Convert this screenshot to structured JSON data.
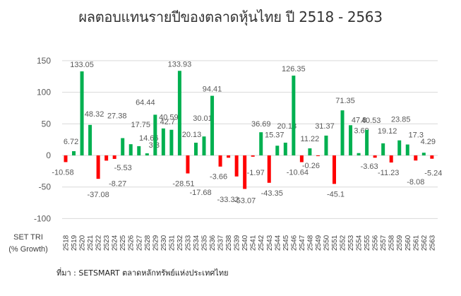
{
  "title": "ผลตอบแทนรายปีของตลาดหุ้นไทย ปี 2518 - 2563",
  "row_label_line1": "SET TRI",
  "row_label_line2": "(% Growth)",
  "source": "ที่มา : SETSMART ตลาดหลักทรัพย์แห่งประเทศไทย",
  "colors": {
    "positive": "#00b050",
    "negative": "#ff0000",
    "grid": "#d9d9d9",
    "text": "#595959"
  },
  "chart_data": {
    "type": "bar",
    "title": "ผลตอบแทนรายปีของตลาดหุ้นไทย ปี 2518 - 2563",
    "xlabel": "SET TRI (% Growth)",
    "ylabel": "",
    "ylim": [
      -100,
      150
    ],
    "yticks": [
      150,
      100,
      50,
      0,
      -50,
      -100
    ],
    "grid": true,
    "legend": "none",
    "categories": [
      "2518",
      "2519",
      "2520",
      "2521",
      "2522",
      "2523",
      "2524",
      "2525",
      "2526",
      "2527",
      "2528",
      "2529",
      "2530",
      "2531",
      "2532",
      "2533",
      "2534",
      "2535",
      "2536",
      "2537",
      "2538",
      "2539",
      "2540",
      "2541",
      "2542",
      "2543",
      "2544",
      "2545",
      "2546",
      "2547",
      "2548",
      "2549",
      "2550",
      "2551",
      "2552",
      "2553",
      "2554",
      "2555",
      "2556",
      "2557",
      "2558",
      "2559",
      "2560",
      "2561",
      "2562",
      "2563"
    ],
    "values": [
      -10.58,
      6.72,
      133.05,
      48.32,
      -37.08,
      -8.27,
      -5.53,
      27.38,
      17.75,
      14.66,
      3.3,
      64.44,
      42.7,
      40.59,
      133.93,
      -28.51,
      20.13,
      30.01,
      94.41,
      -17.68,
      -3.66,
      -33.32,
      -53.07,
      -1.97,
      36.69,
      -43.35,
      15.37,
      20.18,
      126.35,
      -10.64,
      11.22,
      -0.26,
      31.37,
      -45.1,
      71.35,
      47.8,
      3.69,
      40.53,
      -3.63,
      19.12,
      -11.23,
      23.85,
      17.3,
      -8.08,
      4.29,
      -5.24
    ],
    "labels": [
      "-10.58",
      "6.72",
      "133.05",
      "48.32",
      "-37.08",
      "-8.27",
      "-5.53",
      "27.38",
      "17.75",
      "14.66",
      "3.3",
      "64.44",
      "42.7",
      "40.59",
      "133.93",
      "-28.51",
      "20.13",
      "30.01",
      "94.41",
      "-17.68",
      "-3.66",
      "-33.32",
      "-53.07",
      "-1.97",
      "36.69",
      "-43.35",
      "15.37",
      "20.18",
      "126.35",
      "-10.64",
      "11.22",
      "-0.26",
      "31.37",
      "-45.1",
      "71.35",
      "47.8",
      "3.69",
      "40.53",
      "-3.63",
      "19.12",
      "-11.23",
      "23.85",
      "17.3",
      "-8.08",
      "4.29",
      "-5.24"
    ]
  }
}
